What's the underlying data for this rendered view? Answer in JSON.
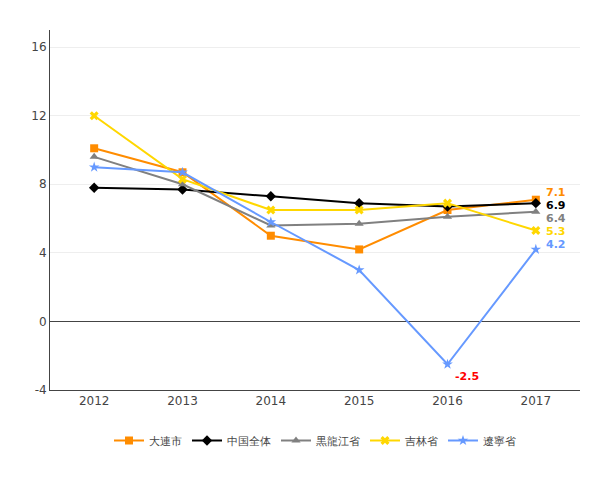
{
  "chart_data": {
    "type": "line",
    "x": [
      2012,
      2013,
      2014,
      2015,
      2016,
      2017
    ],
    "xlim": [
      2011.5,
      2017.5
    ],
    "xticks": [
      2012,
      2013,
      2014,
      2015,
      2016,
      2017
    ],
    "ylim": [
      -4,
      17
    ],
    "yticks": [
      -4,
      0,
      4,
      8,
      12,
      16
    ],
    "grid": "y",
    "legend": "bottom",
    "series": [
      {
        "name": "大連市",
        "color": "#FF8C00",
        "marker": "square",
        "values": [
          10.1,
          8.7,
          5.0,
          4.2,
          6.5,
          7.1
        ]
      },
      {
        "name": "中国全体",
        "color": "#000000",
        "marker": "diamond",
        "values": [
          7.8,
          7.7,
          7.3,
          6.9,
          6.7,
          6.9
        ]
      },
      {
        "name": "黒龍江省",
        "color": "#808080",
        "marker": "triangle-up",
        "values": [
          9.6,
          8.0,
          5.6,
          5.7,
          6.1,
          6.4
        ]
      },
      {
        "name": "吉林省",
        "color": "#FFD700",
        "marker": "x",
        "values": [
          12.0,
          8.3,
          6.5,
          6.5,
          6.9,
          5.3
        ]
      },
      {
        "name": "遼寧省",
        "color": "#6699FF",
        "marker": "star",
        "values": [
          9.0,
          8.7,
          5.8,
          3.0,
          -2.5,
          4.2
        ]
      }
    ],
    "annotations": [
      {
        "text": "-2.5",
        "x": 2016,
        "y": -2.5,
        "color": "#FF0000"
      },
      {
        "text": "7.1",
        "x": 2017,
        "y": 7.1,
        "color": "#FF8C00"
      },
      {
        "text": "6.9",
        "x": 2017,
        "y": 6.9,
        "color": "#000000"
      },
      {
        "text": "6.4",
        "x": 2017,
        "y": 6.4,
        "color": "#808080"
      },
      {
        "text": "5.3",
        "x": 2017,
        "y": 5.3,
        "color": "#FFD700"
      },
      {
        "text": "4.2",
        "x": 2017,
        "y": 4.2,
        "color": "#6699FF"
      }
    ]
  }
}
